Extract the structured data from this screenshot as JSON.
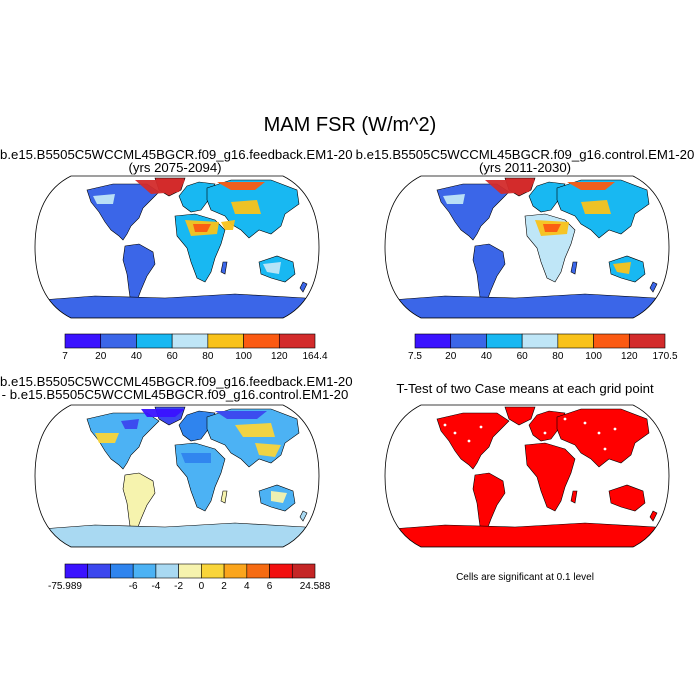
{
  "figure": {
    "title": "MAM FSR (W/m^2)"
  },
  "panels": [
    {
      "title_line1": "b.e15.B5505C5WCCML45BGCR.f09_g16.feedback.EM1-20",
      "title_line2": "(yrs 2075-2094)",
      "colormap": [
        "#3a12ff",
        "#3b66e8",
        "#18b8f2",
        "#bfe6f7",
        "#f9c21a",
        "#fb5a12",
        "#d32b2b"
      ],
      "colorbar_labels": [
        "7",
        "20",
        "40",
        "60",
        "80",
        "100",
        "120",
        "164.4"
      ]
    },
    {
      "title_line1": "b.e15.B5505C5WCCML45BGCR.f09_g16.control.EM1-20",
      "title_line2": "(yrs 2011-2030)",
      "colormap": [
        "#3a12ff",
        "#3b66e8",
        "#18b8f2",
        "#bfe6f7",
        "#f9c21a",
        "#fb5a12",
        "#d32b2b"
      ],
      "colorbar_labels": [
        "7.5",
        "20",
        "40",
        "60",
        "80",
        "100",
        "120",
        "170.5"
      ]
    },
    {
      "title_line1": "b.e15.B5505C5WCCML45BGCR.f09_g16.feedback.EM1-20",
      "title_line2": "- b.e15.B5505C5WCCML45BGCR.f09_g16.control.EM1-20",
      "colormap": [
        "#3a12ff",
        "#3b47ee",
        "#2f84ee",
        "#4cb2f4",
        "#a9d9f2",
        "#f6f3ae",
        "#f9d53a",
        "#fba51c",
        "#f66b12",
        "#f21010",
        "#c52626"
      ],
      "colorbar_labels": [
        "-75.989",
        "-6",
        "-4",
        "-2",
        "0",
        "2",
        "4",
        "6",
        "24.588"
      ]
    },
    {
      "title_line1": "T-Test of two Case means at each grid point",
      "footnote": "Cells are significant at 0.1 level",
      "color": "#ff0000"
    }
  ],
  "chart_data": [
    {
      "type": "heatmap",
      "title": "b.e15.B5505C5WCCML45BGCR.f09_g16.feedback.EM1-20 (yrs 2075-2094)",
      "variable": "MAM FSR (W/m^2)",
      "projection": "Robinson",
      "range": [
        7,
        164.4
      ],
      "colorbar_levels": [
        7,
        20,
        40,
        60,
        80,
        100,
        120,
        164.4
      ]
    },
    {
      "type": "heatmap",
      "title": "b.e15.B5505C5WCCML45BGCR.f09_g16.control.EM1-20 (yrs 2011-2030)",
      "variable": "MAM FSR (W/m^2)",
      "projection": "Robinson",
      "range": [
        7.5,
        170.5
      ],
      "colorbar_levels": [
        7.5,
        20,
        40,
        60,
        80,
        100,
        120,
        170.5
      ]
    },
    {
      "type": "heatmap",
      "title": "feedback - control",
      "variable": "MAM FSR (W/m^2)",
      "projection": "Robinson",
      "range": [
        -75.989,
        24.588
      ],
      "colorbar_levels": [
        -75.989,
        -6,
        -4,
        -2,
        0,
        2,
        4,
        6,
        24.588
      ]
    },
    {
      "type": "heatmap",
      "title": "T-Test of two Case means at each grid point",
      "projection": "Robinson",
      "significance_level": 0.1
    }
  ]
}
